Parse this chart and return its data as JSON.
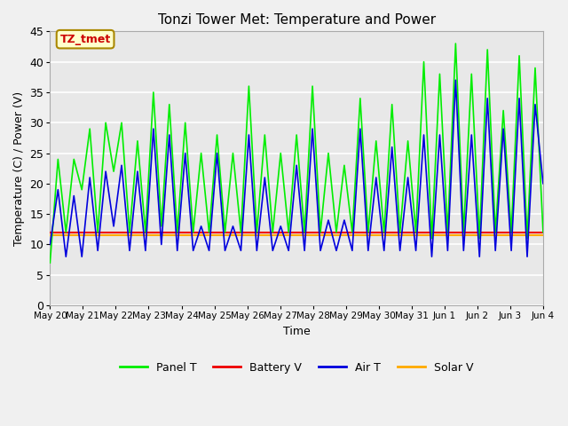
{
  "title": "Tonzi Tower Met: Temperature and Power",
  "xlabel": "Time",
  "ylabel": "Temperature (C) / Power (V)",
  "ylim": [
    0,
    45
  ],
  "yticks": [
    0,
    5,
    10,
    15,
    20,
    25,
    30,
    35,
    40,
    45
  ],
  "annotation_text": "TZ_tmet",
  "annotation_color": "#cc0000",
  "annotation_bg": "#ffffcc",
  "annotation_border": "#aa8800",
  "fig_bg_color": "#f0f0f0",
  "plot_bg": "#e8e8e8",
  "grid_color": "#ffffff",
  "panel_t_color": "#00ee00",
  "battery_v_color": "#ee0000",
  "air_t_color": "#0000dd",
  "solar_v_color": "#ffaa00",
  "x_ticks_labels": [
    "May 20",
    "May 21",
    "May 22",
    "May 23",
    "May 24",
    "May 25",
    "May 26",
    "May 27",
    "May 28",
    "May 29",
    "May 30",
    "May 31",
    "Jun 1",
    "Jun 2",
    "Jun 3",
    "Jun 4"
  ],
  "panel_t_data": [
    7,
    24,
    12,
    24,
    19,
    29,
    12,
    30,
    22,
    30,
    12,
    27,
    12,
    35,
    13,
    33,
    12,
    30,
    12,
    25,
    12,
    28,
    12,
    25,
    12,
    36,
    12,
    28,
    12,
    25,
    12,
    28,
    12,
    36,
    12,
    25,
    12,
    23,
    12,
    34,
    12,
    27,
    12,
    33,
    12,
    27,
    12,
    40,
    11,
    38,
    12,
    43,
    12,
    38,
    11,
    42,
    12,
    32,
    12,
    41,
    11,
    39,
    12
  ],
  "air_t_data": [
    10,
    19,
    8,
    18,
    8,
    21,
    9,
    22,
    13,
    23,
    9,
    22,
    9,
    29,
    10,
    28,
    9,
    25,
    9,
    13,
    9,
    25,
    9,
    13,
    9,
    28,
    9,
    21,
    9,
    13,
    9,
    23,
    9,
    29,
    9,
    14,
    9,
    14,
    9,
    29,
    9,
    21,
    9,
    26,
    9,
    21,
    9,
    28,
    8,
    28,
    9,
    37,
    9,
    28,
    8,
    34,
    9,
    29,
    9,
    34,
    8,
    33,
    20
  ],
  "battery_v_data": 12.0,
  "solar_v_data": 11.5
}
